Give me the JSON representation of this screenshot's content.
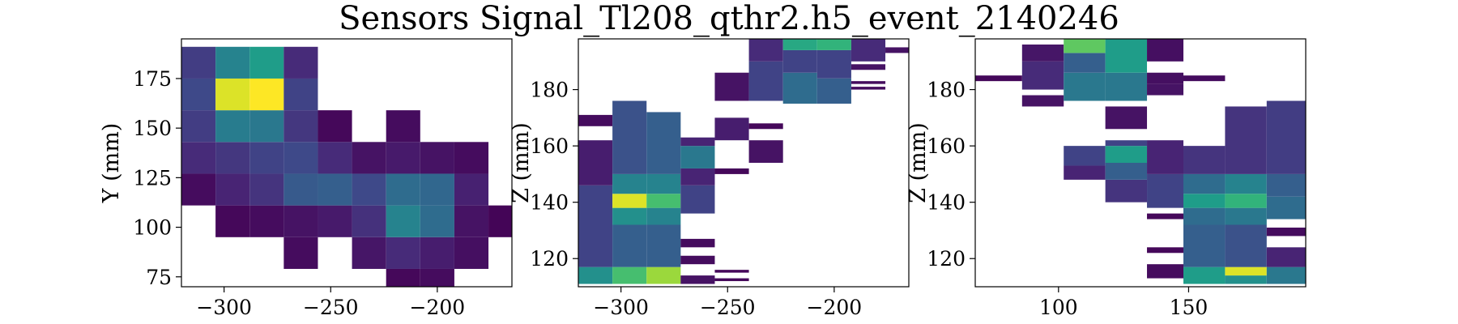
{
  "chart_data": {
    "title": "Sensors Signal_Tl208_qthr2.h5_event_2140246",
    "colormap": "viridis",
    "panels": [
      {
        "type": "heatmap",
        "xlabel": "",
        "ylabel": "Y (mm)",
        "xlim": [
          -320,
          -165
        ],
        "ylim": [
          70,
          195
        ],
        "xticks": [
          -300,
          -250,
          -200
        ],
        "yticks": [
          75,
          100,
          125,
          150,
          175
        ],
        "tick_labels_x": [
          "−300",
          "−250",
          "−200"
        ],
        "tick_labels_y": [
          "75",
          "100",
          "125",
          "150",
          "175"
        ],
        "bin_width": 16,
        "bin_height": 16,
        "x_centers": [
          -312,
          -296,
          -280,
          -264,
          -248,
          -232,
          -216,
          -200,
          -184,
          -168
        ],
        "y_centers": [
          71,
          87,
          103,
          119,
          135,
          151,
          167,
          183
        ],
        "z": [
          [
            null,
            null,
            null,
            null,
            null,
            null,
            0.02,
            0.03,
            null,
            null
          ],
          [
            null,
            null,
            null,
            0.03,
            null,
            0.06,
            0.12,
            0.08,
            0.04,
            null
          ],
          [
            null,
            0.02,
            0.03,
            0.05,
            0.07,
            0.14,
            0.45,
            0.35,
            0.05,
            0.01
          ],
          [
            0.03,
            0.1,
            0.15,
            0.28,
            0.3,
            0.22,
            0.35,
            0.33,
            0.09,
            null
          ],
          [
            0.12,
            0.16,
            0.2,
            0.22,
            0.12,
            0.05,
            0.07,
            0.05,
            0.03,
            null
          ],
          [
            0.18,
            0.42,
            0.4,
            0.16,
            0.02,
            null,
            0.03,
            null,
            null,
            null
          ],
          [
            0.22,
            0.95,
            1.0,
            0.2,
            null,
            null,
            null,
            null,
            null,
            null
          ],
          [
            0.18,
            0.45,
            0.55,
            0.12,
            null,
            null,
            null,
            null,
            null,
            null
          ]
        ]
      },
      {
        "type": "heatmap",
        "xlabel": "",
        "ylabel": "Z (mm)",
        "xlim": [
          -320,
          -165
        ],
        "ylim": [
          110,
          198
        ],
        "xticks": [
          -300,
          -250,
          -200
        ],
        "yticks": [
          120,
          140,
          160,
          180
        ],
        "tick_labels_x": [
          "−300",
          "−250",
          "−200"
        ],
        "tick_labels_y": [
          "120",
          "140",
          "160",
          "180"
        ],
        "columns": [
          {
            "x0": -320,
            "x1": -304,
            "intervals": [
              [
                111,
                117,
                0.5
              ],
              [
                117,
                146,
                0.2
              ],
              [
                146,
                162,
                0.08
              ],
              [
                167,
                171,
                0.03
              ]
            ]
          },
          {
            "x0": -304,
            "x1": -288,
            "intervals": [
              [
                111,
                117,
                0.7
              ],
              [
                117,
                132,
                0.3
              ],
              [
                132,
                138,
                0.5
              ],
              [
                138,
                143,
                0.95
              ],
              [
                143,
                150,
                0.45
              ],
              [
                150,
                176,
                0.25
              ]
            ]
          },
          {
            "x0": -288,
            "x1": -272,
            "intervals": [
              [
                111,
                117,
                0.85
              ],
              [
                117,
                132,
                0.3
              ],
              [
                132,
                138,
                0.45
              ],
              [
                138,
                143,
                0.7
              ],
              [
                143,
                150,
                0.45
              ],
              [
                150,
                172,
                0.3
              ]
            ]
          },
          {
            "x0": -272,
            "x1": -256,
            "intervals": [
              [
                111,
                114,
                0.05
              ],
              [
                118,
                121,
                0.03
              ],
              [
                124,
                127,
                0.03
              ],
              [
                136,
                146,
                0.2
              ],
              [
                146,
                152,
                0.1
              ],
              [
                152,
                160,
                0.4
              ],
              [
                160,
                163,
                0.1
              ]
            ]
          },
          {
            "x0": -256,
            "x1": -240,
            "intervals": [
              [
                112,
                113,
                0.02
              ],
              [
                115,
                116,
                0.02
              ],
              [
                150,
                152,
                0.02
              ],
              [
                162,
                170,
                0.08
              ],
              [
                176,
                186,
                0.05
              ]
            ]
          },
          {
            "x0": -240,
            "x1": -224,
            "intervals": [
              [
                154,
                162,
                0.05
              ],
              [
                166,
                168,
                0.02
              ],
              [
                176,
                190,
                0.2
              ],
              [
                190,
                198,
                0.12
              ]
            ]
          },
          {
            "x0": -224,
            "x1": -208,
            "intervals": [
              [
                175,
                186,
                0.35
              ],
              [
                186,
                194,
                0.2
              ],
              [
                194,
                198,
                0.6
              ]
            ]
          },
          {
            "x0": -208,
            "x1": -192,
            "intervals": [
              [
                175,
                184,
                0.3
              ],
              [
                184,
                194,
                0.2
              ],
              [
                194,
                198,
                0.65
              ]
            ]
          },
          {
            "x0": -192,
            "x1": -176,
            "intervals": [
              [
                180,
                181,
                0.03
              ],
              [
                182,
                183,
                0.03
              ],
              [
                187,
                189,
                0.05
              ],
              [
                190,
                198,
                0.12
              ]
            ]
          },
          {
            "x0": -176,
            "x1": -165,
            "intervals": [
              [
                193,
                195,
                0.05
              ]
            ]
          }
        ]
      },
      {
        "type": "heatmap",
        "xlabel": "",
        "ylabel": "Z (mm)",
        "xlim": [
          68,
          195
        ],
        "ylim": [
          110,
          198
        ],
        "xticks": [
          100,
          150
        ],
        "yticks": [
          120,
          140,
          160,
          180
        ],
        "tick_labels_x": [
          "100",
          "150"
        ],
        "tick_labels_y": [
          "120",
          "140",
          "160",
          "180"
        ],
        "columns": [
          {
            "x0": 68,
            "x1": 86,
            "intervals": [
              [
                183,
                185,
                0.02
              ]
            ]
          },
          {
            "x0": 86,
            "x1": 102,
            "intervals": [
              [
                174,
                178,
                0.05
              ],
              [
                180,
                190,
                0.12
              ],
              [
                190,
                196,
                0.06
              ]
            ]
          },
          {
            "x0": 102,
            "x1": 118,
            "intervals": [
              [
                148,
                153,
                0.1
              ],
              [
                153,
                160,
                0.2
              ],
              [
                176,
                186,
                0.4
              ],
              [
                186,
                193,
                0.3
              ],
              [
                193,
                198,
                0.75
              ]
            ]
          },
          {
            "x0": 118,
            "x1": 134,
            "intervals": [
              [
                140,
                148,
                0.15
              ],
              [
                148,
                154,
                0.3
              ],
              [
                154,
                160,
                0.55
              ],
              [
                160,
                162,
                0.2
              ],
              [
                166,
                174,
                0.05
              ],
              [
                176,
                186,
                0.4
              ],
              [
                186,
                198,
                0.55
              ]
            ]
          },
          {
            "x0": 134,
            "x1": 148,
            "intervals": [
              [
                113,
                118,
                0.03
              ],
              [
                122,
                124,
                0.02
              ],
              [
                134,
                136,
                0.02
              ],
              [
                138,
                150,
                0.2
              ],
              [
                150,
                162,
                0.1
              ],
              [
                178,
                182,
                0.05
              ],
              [
                182,
                186,
                0.04
              ],
              [
                190,
                198,
                0.04
              ]
            ]
          },
          {
            "x0": 148,
            "x1": 164,
            "intervals": [
              [
                111,
                117,
                0.55
              ],
              [
                117,
                132,
                0.3
              ],
              [
                132,
                138,
                0.35
              ],
              [
                138,
                143,
                0.55
              ],
              [
                143,
                150,
                0.35
              ],
              [
                150,
                160,
                0.15
              ],
              [
                183,
                185,
                0.03
              ]
            ]
          },
          {
            "x0": 164,
            "x1": 180,
            "intervals": [
              [
                111,
                114,
                0.5
              ],
              [
                114,
                117,
                0.95
              ],
              [
                117,
                132,
                0.25
              ],
              [
                132,
                138,
                0.4
              ],
              [
                138,
                143,
                0.65
              ],
              [
                143,
                150,
                0.45
              ],
              [
                150,
                174,
                0.15
              ]
            ]
          },
          {
            "x0": 180,
            "x1": 195,
            "intervals": [
              [
                111,
                117,
                0.4
              ],
              [
                117,
                124,
                0.1
              ],
              [
                128,
                131,
                0.03
              ],
              [
                134,
                142,
                0.35
              ],
              [
                142,
                150,
                0.3
              ],
              [
                150,
                176,
                0.18
              ]
            ]
          }
        ]
      }
    ]
  }
}
